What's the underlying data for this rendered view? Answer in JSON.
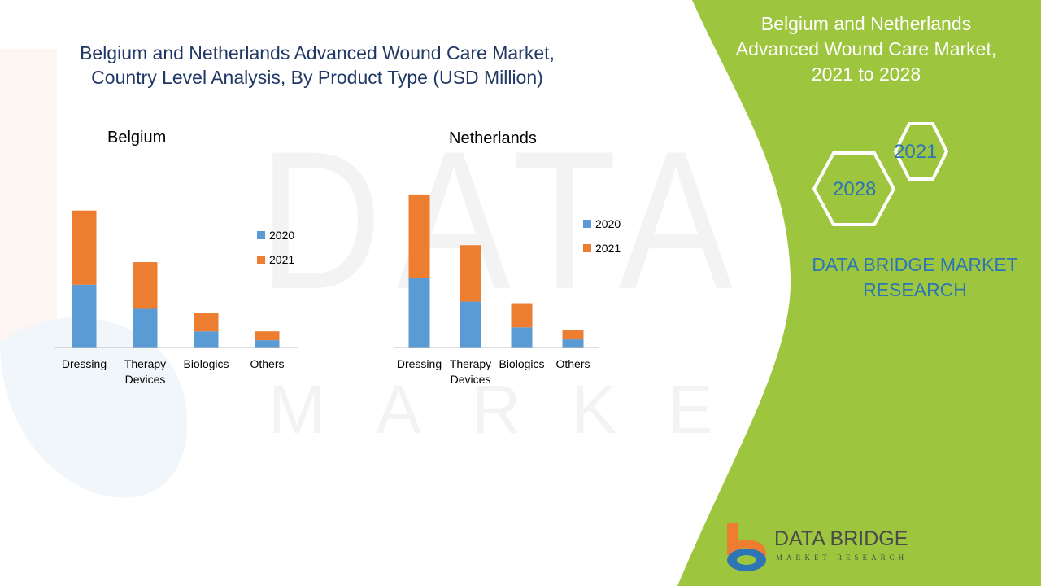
{
  "main_title_line1": "Belgium and Netherlands Advanced Wound Care Market,",
  "main_title_line2": "Country Level Analysis, By Product Type  (USD Million)",
  "side_title_line1": "Belgium and Netherlands",
  "side_title_line2": "Advanced Wound Care Market,",
  "side_title_line3": "2021 to 2028",
  "hex_year_a": "2021",
  "hex_year_b": "2028",
  "brand_line1": "DATA BRIDGE MARKET",
  "brand_line2": "RESEARCH",
  "logo_name": "DATA BRIDGE",
  "logo_tagline": "MARKET RESEARCH",
  "watermark_big": "DATA BRIDGE",
  "watermark_small": "MARKET RESEARCH",
  "colors": {
    "series_2020": "#5b9bd5",
    "series_2021": "#ed7d31",
    "green": "#9dc53e",
    "title_blue": "#1f3864",
    "brand_blue": "#2e75b6"
  },
  "chart_data": [
    {
      "type": "bar",
      "stacked": true,
      "title": "Belgium",
      "categories": [
        [
          "Dressing"
        ],
        [
          "Therapy",
          "Devices"
        ],
        [
          "Biologics"
        ],
        [
          "Others"
        ]
      ],
      "series": [
        {
          "name": "2020",
          "values": [
            78,
            48,
            20,
            9
          ]
        },
        {
          "name": "2021",
          "values": [
            92,
            58,
            23,
            11
          ]
        }
      ],
      "ylim": [
        0,
        200
      ],
      "grid": false,
      "legend": "right"
    },
    {
      "type": "bar",
      "stacked": true,
      "title": "Netherlands",
      "categories": [
        [
          "Dressing"
        ],
        [
          "Therapy",
          "Devices"
        ],
        [
          "Biologics"
        ],
        [
          "Others"
        ]
      ],
      "series": [
        {
          "name": "2020",
          "values": [
            86,
            57,
            25,
            10
          ]
        },
        {
          "name": "2021",
          "values": [
            104,
            70,
            30,
            12
          ]
        }
      ],
      "ylim": [
        0,
        200
      ],
      "grid": false,
      "legend": "right"
    }
  ]
}
